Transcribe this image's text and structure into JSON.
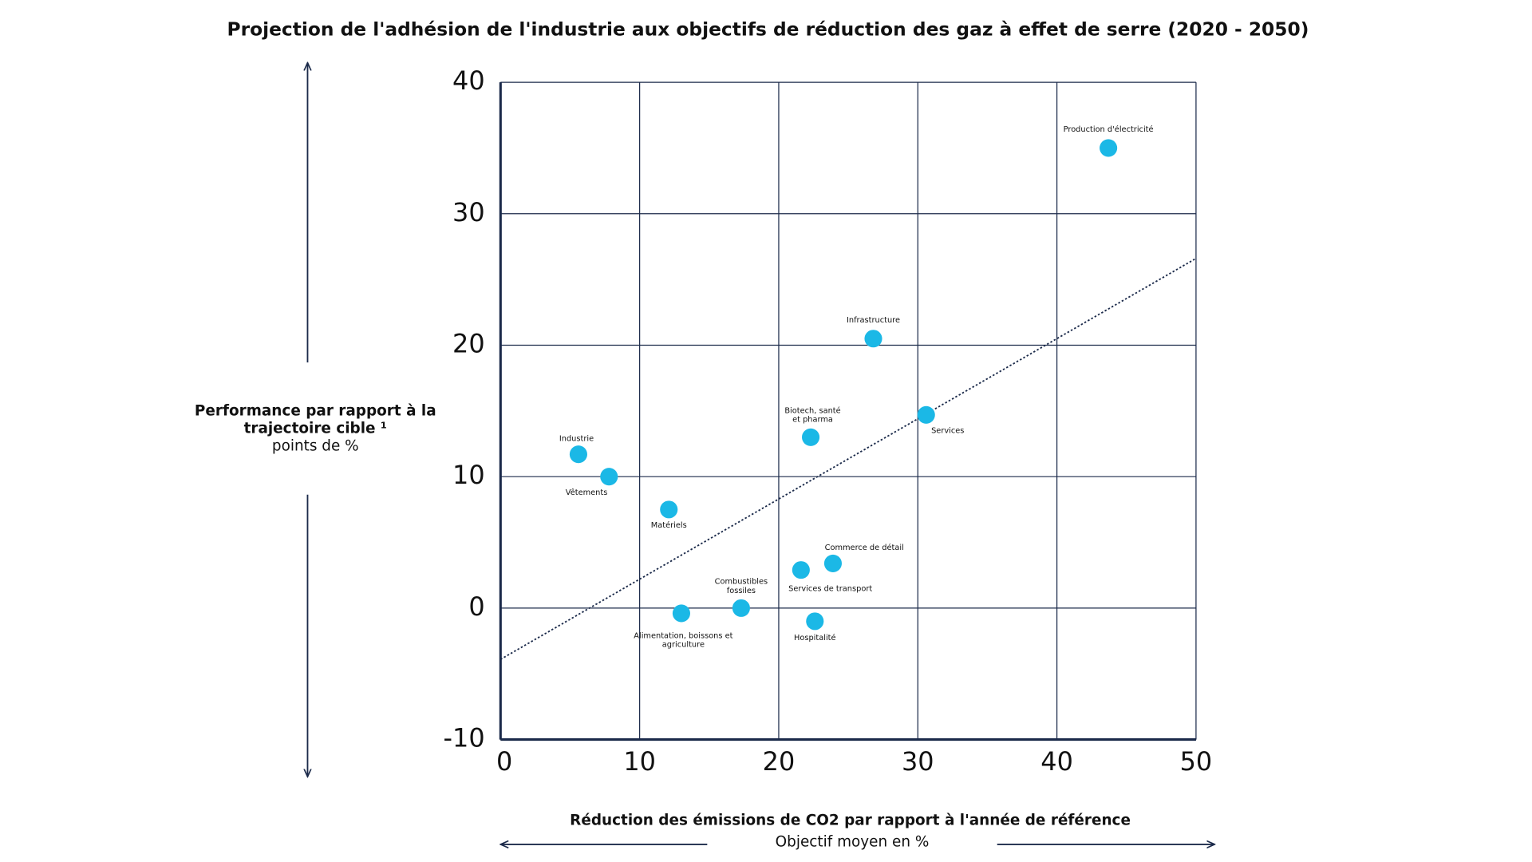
{
  "chart_data": {
    "type": "scatter",
    "title": "Projection de l'adhésion de l'industrie aux objectifs de réduction des gaz à effet de serre (2020 - 2050)",
    "y_label": [
      "Performance par rapport à la",
      "trajectoire cible ¹"
    ],
    "y_sublabel": "points de %",
    "x_label": "Réduction des émissions de CO2 par rapport à l'année de référence",
    "x_sublabel": "Objectif moyen en %",
    "xlim": [
      0,
      50
    ],
    "xticks": [
      0,
      10,
      20,
      30,
      40,
      50
    ],
    "ylim": [
      -10,
      40
    ],
    "yticks": [
      -10,
      0,
      10,
      20,
      30,
      40
    ],
    "grid": true,
    "color": "#1bb8e6",
    "points": [
      {
        "label": [
          "Production d'électricité"
        ],
        "x": 43.7,
        "y": 35.0
      },
      {
        "label": [
          "Infrastructure"
        ],
        "x": 26.8,
        "y": 20.5
      },
      {
        "label": [
          "Services"
        ],
        "x": 30.6,
        "y": 14.7
      },
      {
        "label": [
          "Biotech, santé",
          "et pharma"
        ],
        "x": 22.3,
        "y": 13.0
      },
      {
        "label": [
          "Industrie"
        ],
        "x": 5.6,
        "y": 11.7
      },
      {
        "label": [
          "Vêtements"
        ],
        "x": 7.8,
        "y": 10.0
      },
      {
        "label": [
          "Matériels"
        ],
        "x": 12.1,
        "y": 7.5
      },
      {
        "label": [
          "Commerce de détail"
        ],
        "x": 23.9,
        "y": 3.4
      },
      {
        "label": [
          "Services de transport"
        ],
        "x": 21.6,
        "y": 2.9
      },
      {
        "label": [
          "Combustibles",
          "fossiles"
        ],
        "x": 17.3,
        "y": 0
      },
      {
        "label": [
          "Alimentation, boissons et",
          "agriculture"
        ],
        "x": 13.0,
        "y": -0.4
      },
      {
        "label": [
          "Hospitalité"
        ],
        "x": 22.6,
        "y": -1.0
      }
    ],
    "trendline": {
      "x": [
        0,
        50
      ],
      "y": [
        -3.9,
        26.6
      ],
      "color": "#1b2a4a"
    }
  }
}
